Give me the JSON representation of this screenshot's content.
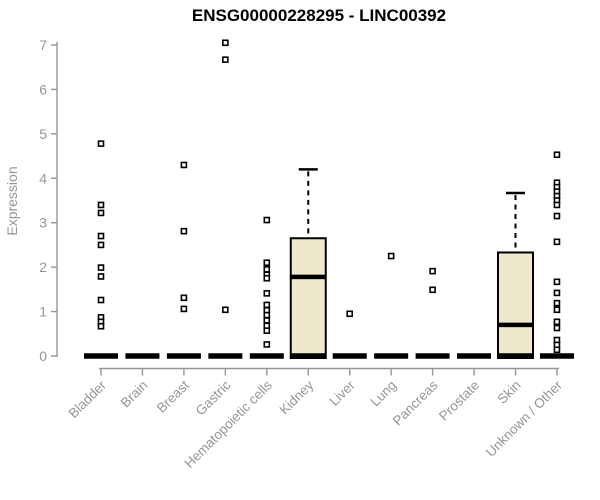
{
  "title": "ENSG00000228295 - LINC00392",
  "colors": {
    "background": "#ffffff",
    "title_text": "#000000",
    "axis_gray": "#969696",
    "box_fill": "#EEE8CD",
    "box_stroke": "#000000",
    "point_fill": "#ffffff",
    "point_stroke": "#000000"
  },
  "chart_data": {
    "type": "boxplot",
    "title": "ENSG00000228295 - LINC00392",
    "xlabel": "",
    "ylabel": "Expression",
    "ylim": [
      0,
      7
    ],
    "yticks": [
      0,
      1,
      2,
      3,
      4,
      5,
      6,
      7
    ],
    "grid": false,
    "legend": "none",
    "categories": [
      "Bladder",
      "Brain",
      "Breast",
      "Gastric",
      "Hematopoietic cells",
      "Kidney",
      "Liver",
      "Lung",
      "Pancreas",
      "Prostate",
      "Skin",
      "Unknown / Other"
    ],
    "series": [
      {
        "name": "Bladder",
        "q1": 0,
        "median": 0,
        "q3": 0,
        "whisker_low": 0,
        "whisker_high": 0,
        "points": [
          4.78,
          3.4,
          3.22,
          2.7,
          2.5,
          1.99,
          1.79,
          1.26,
          0.87,
          0.77,
          0.67
        ]
      },
      {
        "name": "Brain",
        "q1": 0,
        "median": 0,
        "q3": 0,
        "whisker_low": 0,
        "whisker_high": 0,
        "points": []
      },
      {
        "name": "Breast",
        "q1": 0,
        "median": 0,
        "q3": 0,
        "whisker_low": 0,
        "whisker_high": 0,
        "points": [
          4.3,
          2.81,
          1.31,
          1.06
        ]
      },
      {
        "name": "Gastric",
        "q1": 0,
        "median": 0,
        "q3": 0,
        "whisker_low": 0,
        "whisker_high": 0,
        "points": [
          7.05,
          6.67,
          1.04
        ]
      },
      {
        "name": "Hematopoietic cells",
        "q1": 0,
        "median": 0,
        "q3": 0,
        "whisker_low": 0,
        "whisker_high": 0,
        "points": [
          3.06,
          2.1,
          1.95,
          1.83,
          1.75,
          1.41,
          1.15,
          1.03,
          0.92,
          0.8,
          0.68,
          0.57,
          0.26
        ]
      },
      {
        "name": "Kidney",
        "q1": 0,
        "median": 1.78,
        "q3": 2.65,
        "whisker_low": 0,
        "whisker_high": 4.2,
        "points": []
      },
      {
        "name": "Liver",
        "q1": 0,
        "median": 0,
        "q3": 0,
        "whisker_low": 0,
        "whisker_high": 0,
        "points": [
          0.95
        ]
      },
      {
        "name": "Lung",
        "q1": 0,
        "median": 0,
        "q3": 0,
        "whisker_low": 0,
        "whisker_high": 0,
        "points": [
          2.25
        ]
      },
      {
        "name": "Pancreas",
        "q1": 0,
        "median": 0,
        "q3": 0,
        "whisker_low": 0,
        "whisker_high": 0,
        "points": [
          1.91,
          1.49
        ]
      },
      {
        "name": "Prostate",
        "q1": 0,
        "median": 0,
        "q3": 0,
        "whisker_low": 0,
        "whisker_high": 0,
        "points": []
      },
      {
        "name": "Skin",
        "q1": 0,
        "median": 0.7,
        "q3": 2.33,
        "whisker_low": 0,
        "whisker_high": 3.67,
        "points": []
      },
      {
        "name": "Unknown / Other",
        "q1": 0,
        "median": 0,
        "q3": 0,
        "whisker_low": 0,
        "whisker_high": 0,
        "points": [
          4.53,
          3.9,
          3.8,
          3.7,
          3.6,
          3.5,
          3.4,
          3.15,
          2.57,
          1.67,
          1.42,
          1.19,
          1.04,
          0.77,
          0.63,
          0.36,
          0.25,
          0.14
        ]
      }
    ]
  }
}
